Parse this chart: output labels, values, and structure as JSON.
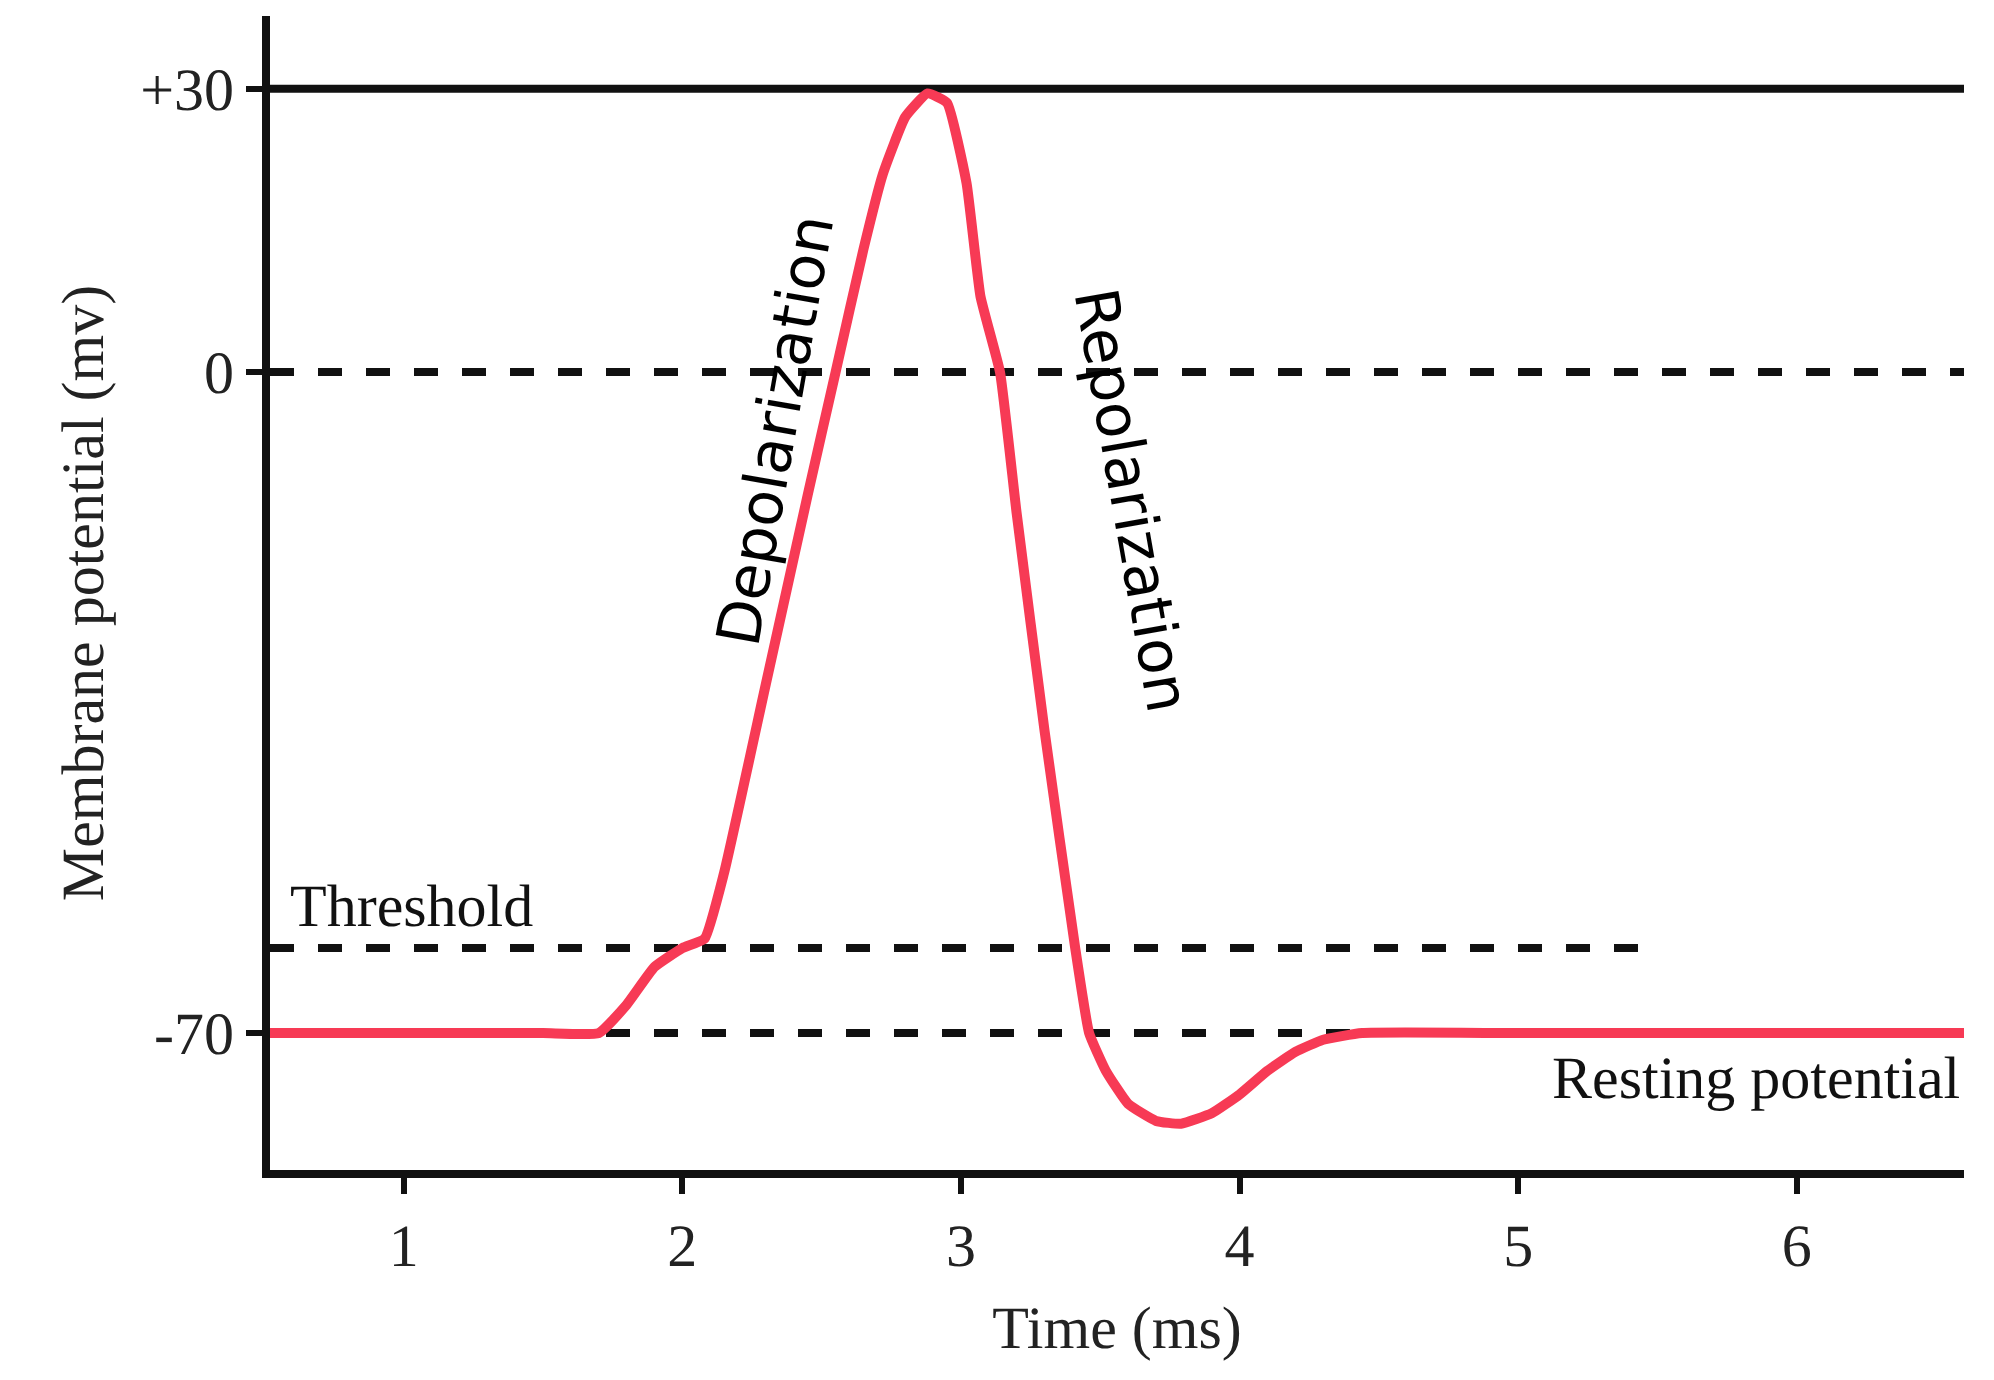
{
  "chart_data": {
    "type": "line",
    "xlabel": "Time (ms)",
    "ylabel": "Membrane potential (mv)",
    "xlim": [
      0.52,
      6.6
    ],
    "ylim": [
      -84.5,
      37.7
    ],
    "xticks": [
      1,
      2,
      3,
      4,
      5,
      6
    ],
    "yticks": [
      {
        "value": 30,
        "label": "+30"
      },
      0,
      -70
    ],
    "legend": false,
    "marker": "none",
    "series": [
      {
        "color": "#f73a55",
        "line_style": "solid",
        "x": [
          0.52,
          1.0,
          1.5,
          1.7,
          1.8,
          1.9,
          2.0,
          2.08,
          2.15,
          2.3,
          2.45,
          2.55,
          2.65,
          2.72,
          2.8,
          2.88,
          2.95,
          3.02,
          3.07,
          3.14,
          3.2,
          3.3,
          3.41,
          3.46,
          3.52,
          3.6,
          3.7,
          3.79,
          3.9,
          4.0,
          4.1,
          4.2,
          4.3,
          4.44,
          5.0,
          6.0,
          6.6
        ],
        "values": [
          -70,
          -70,
          -70,
          -70,
          -67,
          -63,
          -61,
          -60,
          -53,
          -33,
          -13,
          0,
          13,
          21,
          27,
          29.5,
          28.5,
          20,
          8,
          0,
          -15,
          -38,
          -61,
          -70,
          -74,
          -77.5,
          -79.3,
          -79.6,
          -78.5,
          -76.5,
          -74,
          -72,
          -70.7,
          -70,
          -70,
          -70,
          -70
        ]
      },
      {
        "name": "Threshold",
        "color": "#111111",
        "line_style": "dashed",
        "x": [
          0.52,
          5.45
        ],
        "values": [
          -61,
          -61
        ]
      }
    ],
    "ref_lines": [
      {
        "axis": "y",
        "value": 30,
        "label": null,
        "color": "#111111",
        "line_style": "solid"
      },
      {
        "axis": "y",
        "value": 0,
        "label": null,
        "color": "#111111",
        "line_style": "dashed"
      },
      {
        "axis": "y",
        "value": -70,
        "label": "Resting potential",
        "color": "#111111",
        "line_style": "dashed"
      }
    ],
    "annotations": [
      "Depolarization",
      "Repolarization"
    ]
  }
}
